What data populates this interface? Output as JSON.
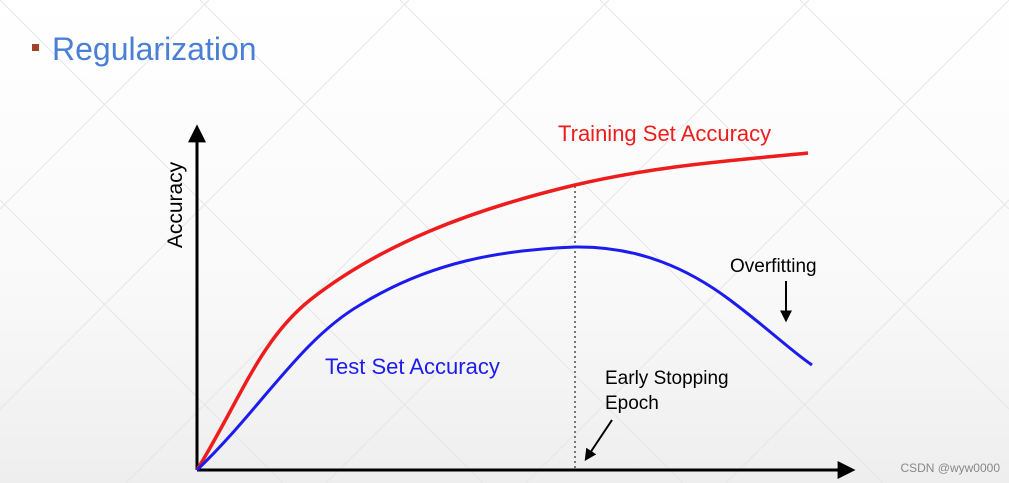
{
  "title": "Regularization",
  "diagram": {
    "y_axis_label": "Accuracy",
    "training_label": "Training Set Accuracy",
    "test_label": "Test Set Accuracy",
    "overfitting_label": "Overfitting",
    "early_stopping_label": [
      "Early Stopping",
      "Epoch"
    ]
  },
  "watermark": "CSDN @wyw0000"
}
